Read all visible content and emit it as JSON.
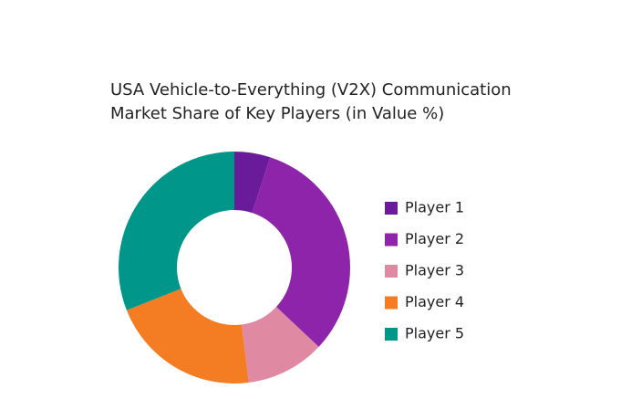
{
  "chart_data": {
    "type": "donut",
    "title": [
      "USA Vehicle-to-Everything (V2X) Communication",
      "Market Share of Key Players (in Value %)"
    ],
    "categories": [
      "Player 1",
      "Player 2",
      "Player 3",
      "Player 4",
      "Player 5"
    ],
    "values": [
      5,
      32,
      11,
      21,
      31
    ],
    "colors": [
      "#6a1b9a",
      "#8e24aa",
      "#e089a3",
      "#f47c22",
      "#00968a"
    ],
    "legend": "right"
  }
}
